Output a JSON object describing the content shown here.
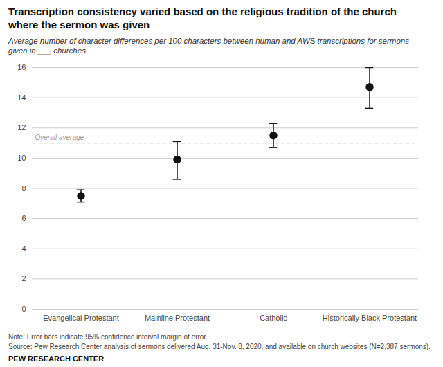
{
  "chart_data": {
    "type": "errorbar",
    "title": "Transcription consistency varied based on the religious tradition of the church\nwhere the sermon was given",
    "subtitle": "Average number of character differences per 100 characters between human and AWS transcriptions for sermons\ngiven in ___ churches",
    "categories": [
      "Evangelical Protestant",
      "Mainline Protestant",
      "Catholic",
      "Historically Black Protestant"
    ],
    "values": [
      7.5,
      9.9,
      11.5,
      14.7
    ],
    "errors_upper": [
      0.4,
      1.2,
      0.8,
      1.3
    ],
    "errors_lower": [
      0.4,
      1.3,
      0.8,
      1.4
    ],
    "color": "#111111",
    "marker": "circle",
    "reference_line": {
      "value": 11.0,
      "label": "Overall average",
      "color": "#aaaaaa",
      "line_style": "dashed"
    },
    "ylim": [
      0,
      16
    ],
    "yticks": [
      0,
      2,
      4,
      6,
      8,
      10,
      12,
      14,
      16
    ],
    "grid": true,
    "notes": [
      "Note: Error bars indicate 95% confidence interval margin of error.",
      "Source: Pew Research Center analysis of sermons delivered Aug. 31-Nov. 8, 2020, and available on church websites (N=2,387 sermons)."
    ],
    "branding": "PEW RESEARCH CENTER"
  }
}
